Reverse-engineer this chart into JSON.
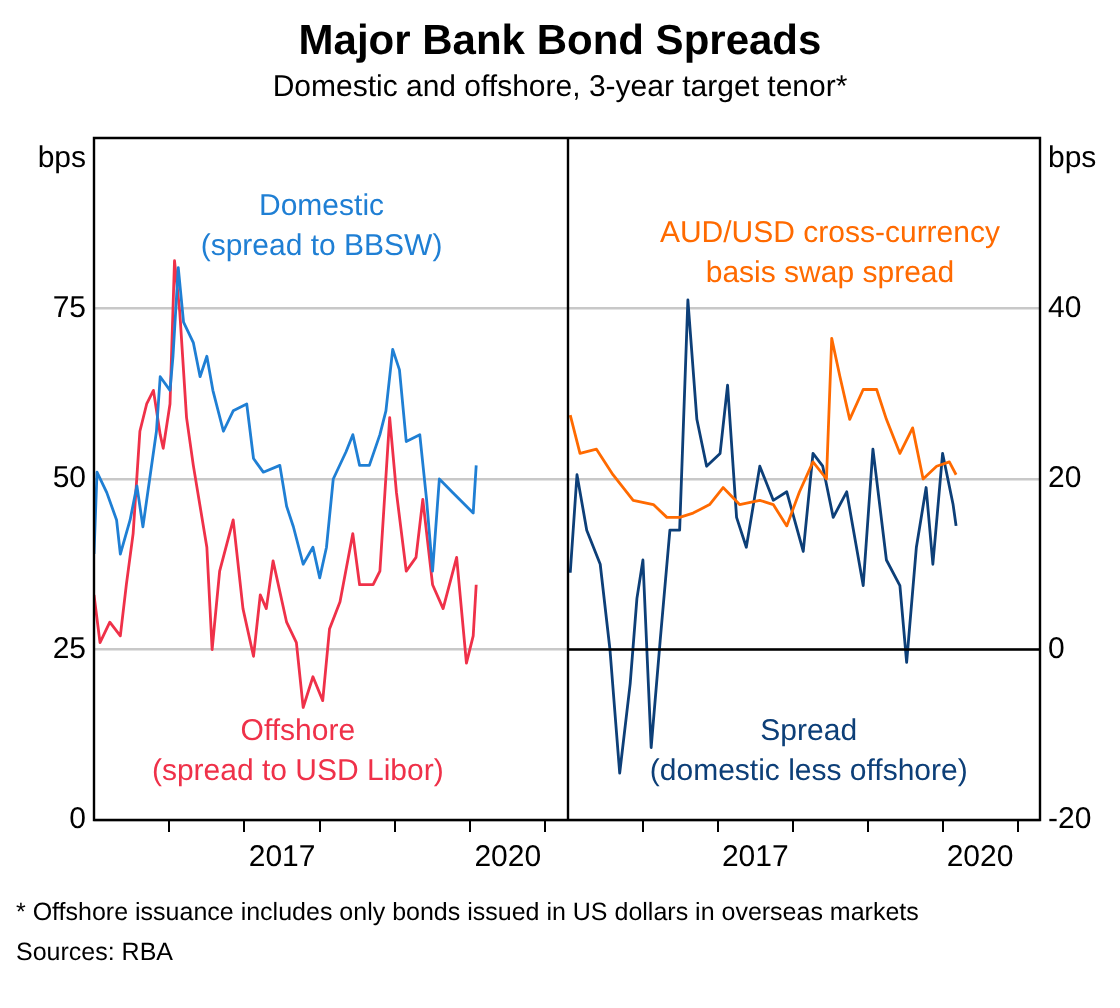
{
  "chart_data": [
    {
      "type": "line",
      "title": "Major Bank Bond Spreads",
      "subtitle": "Domestic and offshore, 3-year target tenor*",
      "ylabel": "bps",
      "xlim": [
        2015,
        2021.3
      ],
      "xticks": [
        {
          "value": 2016,
          "label": null
        },
        {
          "value": 2017,
          "label": null
        },
        {
          "value": 2017.5,
          "label": "2017"
        },
        {
          "value": 2018,
          "label": null
        },
        {
          "value": 2019,
          "label": null
        },
        {
          "value": 2020,
          "label": null
        },
        {
          "value": 2020.5,
          "label": "2020"
        },
        {
          "value": 2021,
          "label": null
        }
      ],
      "ylim": [
        0,
        100
      ],
      "yticks": [
        0,
        25,
        50,
        75
      ],
      "grid": "y",
      "legend": false,
      "marker": "none",
      "line_style": "solid",
      "series": [
        {
          "name": "Domestic\n(spread to BBSW)",
          "color": "#1f7fd4",
          "x": [
            2015.0,
            2015.04,
            2015.17,
            2015.3,
            2015.35,
            2015.48,
            2015.57,
            2015.65,
            2015.74,
            2015.83,
            2015.88,
            2016.01,
            2016.05,
            2016.12,
            2016.19,
            2016.32,
            2016.41,
            2016.5,
            2016.58,
            2016.72,
            2016.85,
            2017.03,
            2017.12,
            2017.25,
            2017.47,
            2017.56,
            2017.65,
            2017.78,
            2017.91,
            2018.0,
            2018.09,
            2018.18,
            2018.35,
            2018.44,
            2018.53,
            2018.66,
            2018.8,
            2018.88,
            2018.97,
            2019.06,
            2019.15,
            2019.33,
            2019.42,
            2019.5,
            2019.59,
            2019.77,
            2019.95,
            2020.04,
            2020.08
          ],
          "values": [
            39,
            51,
            48,
            44,
            39,
            44,
            49,
            43,
            50,
            57,
            65,
            63,
            68,
            81,
            73,
            70,
            65,
            68,
            63,
            57,
            60,
            61,
            53,
            51,
            52,
            46,
            43,
            37.5,
            40,
            35.5,
            40,
            50,
            54,
            56.5,
            52,
            52,
            56.5,
            60,
            69,
            66,
            55.5,
            56.5,
            47,
            36.5,
            50,
            48,
            46,
            45,
            52
          ]
        },
        {
          "name": "Offshore\n(spread to USD Libor)",
          "color": "#ef3149",
          "x": [
            2015.0,
            2015.08,
            2015.21,
            2015.35,
            2015.43,
            2015.52,
            2015.61,
            2015.7,
            2015.79,
            2015.88,
            2015.92,
            2016.01,
            2016.07,
            2016.14,
            2016.23,
            2016.32,
            2016.41,
            2016.5,
            2016.57,
            2016.67,
            2016.85,
            2016.98,
            2017.12,
            2017.21,
            2017.29,
            2017.38,
            2017.56,
            2017.69,
            2017.78,
            2017.91,
            2018.04,
            2018.13,
            2018.27,
            2018.44,
            2018.53,
            2018.71,
            2018.8,
            2018.93,
            2019.02,
            2019.15,
            2019.28,
            2019.37,
            2019.5,
            2019.64,
            2019.82,
            2019.95,
            2020.04,
            2020.08
          ],
          "values": [
            33,
            26,
            29,
            27,
            34.5,
            42,
            57,
            61,
            63,
            56.5,
            54.5,
            61,
            82,
            74.5,
            59,
            52,
            46,
            40,
            25,
            36.5,
            44,
            31,
            24,
            33,
            31,
            38,
            29,
            26,
            16.5,
            21,
            17.5,
            28,
            32,
            42,
            34.5,
            34.5,
            36.5,
            59,
            48,
            36.5,
            38.5,
            47,
            34.5,
            31,
            38.5,
            23,
            27,
            34.5
          ]
        }
      ]
    },
    {
      "type": "line",
      "y2label": "bps",
      "xlim": [
        2015,
        2021.3
      ],
      "xticks": [
        {
          "value": 2016,
          "label": null
        },
        {
          "value": 2017,
          "label": null
        },
        {
          "value": 2017.5,
          "label": "2017"
        },
        {
          "value": 2018,
          "label": null
        },
        {
          "value": 2019,
          "label": null
        },
        {
          "value": 2020,
          "label": null
        },
        {
          "value": 2020.5,
          "label": "2020"
        },
        {
          "value": 2021,
          "label": null
        }
      ],
      "y2lim": [
        -20,
        60
      ],
      "y2ticks": [
        -20,
        0,
        20,
        40
      ],
      "grid": "y",
      "legend": false,
      "marker": "none",
      "line_style": "solid",
      "ref_lines": [
        {
          "axis": "y2",
          "value": 0,
          "color": "#000000"
        }
      ],
      "annotations": [
        "* Offshore issuance includes only bonds issued in US dollars in overseas markets",
        "Sources: RBA"
      ],
      "series": [
        {
          "name": "AUD/USD cross-currency\nbasis swap spread",
          "color": "#ff6a00",
          "axis": "y2",
          "x": [
            2015.03,
            2015.16,
            2015.38,
            2015.6,
            2015.87,
            2016.14,
            2016.32,
            2016.49,
            2016.67,
            2016.89,
            2017.07,
            2017.29,
            2017.56,
            2017.74,
            2017.92,
            2018.09,
            2018.27,
            2018.45,
            2018.52,
            2018.63,
            2018.76,
            2018.94,
            2019.12,
            2019.25,
            2019.43,
            2019.6,
            2019.74,
            2019.92,
            2020.09,
            2020.18
          ],
          "values": [
            27.5,
            23,
            23.5,
            20.5,
            17.5,
            17,
            15.5,
            15.5,
            16,
            17,
            19,
            17,
            17.5,
            17,
            14.5,
            18.5,
            22,
            20,
            36.5,
            32,
            27,
            30.5,
            30.5,
            27,
            23,
            26,
            20,
            21.5,
            22,
            20.5
          ]
        },
        {
          "name": "Spread\n(domestic less offshore)",
          "color": "#0d3f78",
          "axis": "y2",
          "x": [
            2015.03,
            2015.12,
            2015.25,
            2015.43,
            2015.56,
            2015.69,
            2015.83,
            2015.92,
            2016.0,
            2016.11,
            2016.23,
            2016.36,
            2016.49,
            2016.6,
            2016.72,
            2016.85,
            2017.03,
            2017.13,
            2017.25,
            2017.38,
            2017.56,
            2017.74,
            2017.92,
            2018.14,
            2018.27,
            2018.4,
            2018.54,
            2018.72,
            2018.94,
            2019.07,
            2019.25,
            2019.43,
            2019.52,
            2019.65,
            2019.78,
            2019.87,
            2020.0,
            2020.14,
            2020.18
          ],
          "values": [
            9,
            20.5,
            14,
            10,
            0,
            -14.5,
            -4,
            6,
            10.5,
            -11.5,
            1,
            14,
            14,
            41,
            27,
            21.5,
            23,
            31,
            15.5,
            12,
            21.5,
            17.5,
            18.5,
            11.5,
            23,
            21.5,
            15.5,
            18.5,
            7.5,
            23.5,
            10.5,
            7.5,
            -1.5,
            12,
            19,
            10,
            23,
            17,
            14.5
          ]
        }
      ]
    }
  ]
}
